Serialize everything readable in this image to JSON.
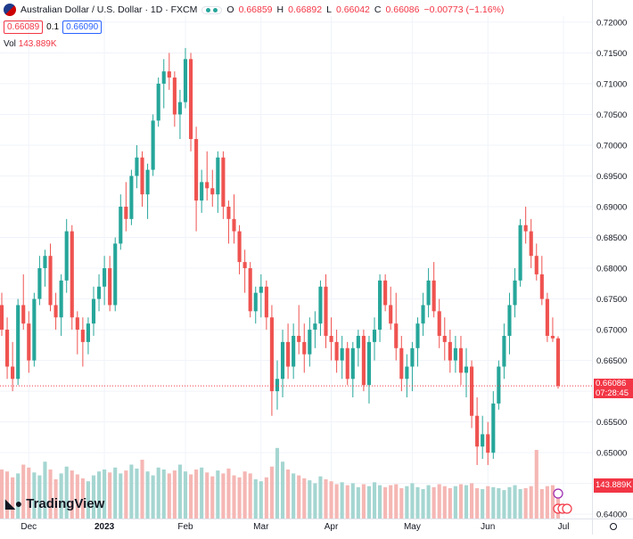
{
  "header": {
    "symbol_title": "Australian Dollar / U.S. Dollar · 1D · FXCM",
    "ohlc": {
      "o_label": "O",
      "o_value": "0.66859",
      "h_label": "H",
      "h_value": "0.66892",
      "l_label": "L",
      "l_value": "0.66042",
      "c_label": "C",
      "c_value": "0.66086",
      "change": "−0.00773 (−1.16%)"
    },
    "bid": "0.66089",
    "spread": "0.1",
    "ask": "0.66090",
    "volume_label": "Vol",
    "volume_value": "143.889K"
  },
  "brand": {
    "name": "TradingView",
    "icon": "tradingview-logo-icon"
  },
  "price_badge": {
    "price": "0.66086",
    "countdown": "07:28:45",
    "color": "#f23645"
  },
  "volume_badge": {
    "value": "143.889K",
    "color": "#f23645"
  },
  "colors": {
    "up": "#26a69a",
    "down": "#ef5350",
    "up_vol": "#a5d6d1",
    "down_vol": "#f5b7b4"
  },
  "chart_data": {
    "type": "candlestick",
    "title": "Australian Dollar / U.S. Dollar · 1D · FXCM",
    "y_axis": {
      "ticks": [
        "0.72000",
        "0.71500",
        "0.71000",
        "0.70500",
        "0.70000",
        "0.69500",
        "0.69000",
        "0.68500",
        "0.68000",
        "0.67500",
        "0.67000",
        "0.66500",
        "0.66000",
        "0.65500",
        "0.65000",
        "0.64500",
        "0.64000"
      ],
      "range": [
        0.6393,
        0.721
      ]
    },
    "x_axis": {
      "ticks": [
        "Dec",
        "2023",
        "Feb",
        "Mar",
        "Apr",
        "May",
        "Jun",
        "Jul"
      ],
      "tick_bar_index": [
        5,
        19,
        34,
        48,
        61,
        76,
        90,
        104
      ]
    },
    "last_close": 0.66086,
    "candles": [
      {
        "o": 0.674,
        "h": 0.676,
        "l": 0.669,
        "c": 0.67
      },
      {
        "o": 0.67,
        "h": 0.672,
        "l": 0.662,
        "c": 0.664
      },
      {
        "o": 0.664,
        "h": 0.668,
        "l": 0.66,
        "c": 0.662
      },
      {
        "o": 0.662,
        "h": 0.675,
        "l": 0.661,
        "c": 0.674
      },
      {
        "o": 0.674,
        "h": 0.679,
        "l": 0.67,
        "c": 0.671
      },
      {
        "o": 0.671,
        "h": 0.673,
        "l": 0.663,
        "c": 0.665
      },
      {
        "o": 0.665,
        "h": 0.676,
        "l": 0.664,
        "c": 0.675
      },
      {
        "o": 0.675,
        "h": 0.682,
        "l": 0.674,
        "c": 0.68
      },
      {
        "o": 0.68,
        "h": 0.683,
        "l": 0.677,
        "c": 0.682
      },
      {
        "o": 0.682,
        "h": 0.684,
        "l": 0.673,
        "c": 0.674
      },
      {
        "o": 0.674,
        "h": 0.676,
        "l": 0.67,
        "c": 0.672
      },
      {
        "o": 0.672,
        "h": 0.679,
        "l": 0.669,
        "c": 0.678
      },
      {
        "o": 0.678,
        "h": 0.688,
        "l": 0.676,
        "c": 0.686
      },
      {
        "o": 0.686,
        "h": 0.687,
        "l": 0.67,
        "c": 0.672
      },
      {
        "o": 0.672,
        "h": 0.673,
        "l": 0.666,
        "c": 0.67
      },
      {
        "o": 0.67,
        "h": 0.672,
        "l": 0.664,
        "c": 0.668
      },
      {
        "o": 0.668,
        "h": 0.672,
        "l": 0.666,
        "c": 0.671
      },
      {
        "o": 0.671,
        "h": 0.677,
        "l": 0.669,
        "c": 0.675
      },
      {
        "o": 0.675,
        "h": 0.679,
        "l": 0.673,
        "c": 0.677
      },
      {
        "o": 0.677,
        "h": 0.682,
        "l": 0.674,
        "c": 0.68
      },
      {
        "o": 0.68,
        "h": 0.682,
        "l": 0.673,
        "c": 0.674
      },
      {
        "o": 0.674,
        "h": 0.685,
        "l": 0.673,
        "c": 0.684
      },
      {
        "o": 0.684,
        "h": 0.692,
        "l": 0.683,
        "c": 0.69
      },
      {
        "o": 0.69,
        "h": 0.694,
        "l": 0.686,
        "c": 0.688
      },
      {
        "o": 0.688,
        "h": 0.696,
        "l": 0.687,
        "c": 0.695
      },
      {
        "o": 0.695,
        "h": 0.7,
        "l": 0.693,
        "c": 0.698
      },
      {
        "o": 0.698,
        "h": 0.699,
        "l": 0.69,
        "c": 0.692
      },
      {
        "o": 0.692,
        "h": 0.697,
        "l": 0.688,
        "c": 0.696
      },
      {
        "o": 0.696,
        "h": 0.705,
        "l": 0.695,
        "c": 0.704
      },
      {
        "o": 0.704,
        "h": 0.711,
        "l": 0.703,
        "c": 0.71
      },
      {
        "o": 0.71,
        "h": 0.714,
        "l": 0.706,
        "c": 0.712
      },
      {
        "o": 0.712,
        "h": 0.715,
        "l": 0.709,
        "c": 0.711
      },
      {
        "o": 0.711,
        "h": 0.712,
        "l": 0.703,
        "c": 0.705
      },
      {
        "o": 0.705,
        "h": 0.709,
        "l": 0.701,
        "c": 0.707
      },
      {
        "o": 0.707,
        "h": 0.7158,
        "l": 0.706,
        "c": 0.714
      },
      {
        "o": 0.714,
        "h": 0.715,
        "l": 0.699,
        "c": 0.701
      },
      {
        "o": 0.701,
        "h": 0.703,
        "l": 0.686,
        "c": 0.691
      },
      {
        "o": 0.691,
        "h": 0.696,
        "l": 0.689,
        "c": 0.694
      },
      {
        "o": 0.694,
        "h": 0.699,
        "l": 0.691,
        "c": 0.693
      },
      {
        "o": 0.693,
        "h": 0.696,
        "l": 0.69,
        "c": 0.692
      },
      {
        "o": 0.692,
        "h": 0.699,
        "l": 0.689,
        "c": 0.698
      },
      {
        "o": 0.698,
        "h": 0.699,
        "l": 0.688,
        "c": 0.69
      },
      {
        "o": 0.69,
        "h": 0.691,
        "l": 0.684,
        "c": 0.688
      },
      {
        "o": 0.688,
        "h": 0.692,
        "l": 0.684,
        "c": 0.686
      },
      {
        "o": 0.686,
        "h": 0.687,
        "l": 0.679,
        "c": 0.681
      },
      {
        "o": 0.681,
        "h": 0.683,
        "l": 0.676,
        "c": 0.68
      },
      {
        "o": 0.68,
        "h": 0.681,
        "l": 0.672,
        "c": 0.673
      },
      {
        "o": 0.673,
        "h": 0.677,
        "l": 0.671,
        "c": 0.676
      },
      {
        "o": 0.676,
        "h": 0.679,
        "l": 0.672,
        "c": 0.677
      },
      {
        "o": 0.677,
        "h": 0.678,
        "l": 0.67,
        "c": 0.672
      },
      {
        "o": 0.672,
        "h": 0.674,
        "l": 0.656,
        "c": 0.66
      },
      {
        "o": 0.66,
        "h": 0.665,
        "l": 0.657,
        "c": 0.662
      },
      {
        "o": 0.662,
        "h": 0.67,
        "l": 0.659,
        "c": 0.668
      },
      {
        "o": 0.668,
        "h": 0.671,
        "l": 0.662,
        "c": 0.664
      },
      {
        "o": 0.664,
        "h": 0.671,
        "l": 0.662,
        "c": 0.669
      },
      {
        "o": 0.669,
        "h": 0.674,
        "l": 0.666,
        "c": 0.668
      },
      {
        "o": 0.668,
        "h": 0.671,
        "l": 0.663,
        "c": 0.666
      },
      {
        "o": 0.666,
        "h": 0.672,
        "l": 0.664,
        "c": 0.67
      },
      {
        "o": 0.67,
        "h": 0.673,
        "l": 0.667,
        "c": 0.671
      },
      {
        "o": 0.671,
        "h": 0.678,
        "l": 0.669,
        "c": 0.677
      },
      {
        "o": 0.677,
        "h": 0.679,
        "l": 0.667,
        "c": 0.669
      },
      {
        "o": 0.669,
        "h": 0.672,
        "l": 0.665,
        "c": 0.668
      },
      {
        "o": 0.668,
        "h": 0.67,
        "l": 0.663,
        "c": 0.665
      },
      {
        "o": 0.665,
        "h": 0.669,
        "l": 0.662,
        "c": 0.667
      },
      {
        "o": 0.667,
        "h": 0.668,
        "l": 0.661,
        "c": 0.662
      },
      {
        "o": 0.662,
        "h": 0.668,
        "l": 0.659,
        "c": 0.667
      },
      {
        "o": 0.667,
        "h": 0.67,
        "l": 0.664,
        "c": 0.669
      },
      {
        "o": 0.669,
        "h": 0.67,
        "l": 0.66,
        "c": 0.661
      },
      {
        "o": 0.661,
        "h": 0.669,
        "l": 0.658,
        "c": 0.668
      },
      {
        "o": 0.668,
        "h": 0.672,
        "l": 0.665,
        "c": 0.67
      },
      {
        "o": 0.67,
        "h": 0.679,
        "l": 0.668,
        "c": 0.678
      },
      {
        "o": 0.678,
        "h": 0.679,
        "l": 0.673,
        "c": 0.674
      },
      {
        "o": 0.674,
        "h": 0.677,
        "l": 0.67,
        "c": 0.671
      },
      {
        "o": 0.671,
        "h": 0.676,
        "l": 0.665,
        "c": 0.667
      },
      {
        "o": 0.667,
        "h": 0.669,
        "l": 0.66,
        "c": 0.662
      },
      {
        "o": 0.662,
        "h": 0.666,
        "l": 0.659,
        "c": 0.664
      },
      {
        "o": 0.664,
        "h": 0.668,
        "l": 0.66,
        "c": 0.667
      },
      {
        "o": 0.667,
        "h": 0.672,
        "l": 0.664,
        "c": 0.671
      },
      {
        "o": 0.671,
        "h": 0.676,
        "l": 0.669,
        "c": 0.674
      },
      {
        "o": 0.674,
        "h": 0.68,
        "l": 0.672,
        "c": 0.678
      },
      {
        "o": 0.678,
        "h": 0.681,
        "l": 0.672,
        "c": 0.673
      },
      {
        "o": 0.673,
        "h": 0.675,
        "l": 0.667,
        "c": 0.669
      },
      {
        "o": 0.669,
        "h": 0.672,
        "l": 0.665,
        "c": 0.668
      },
      {
        "o": 0.668,
        "h": 0.67,
        "l": 0.663,
        "c": 0.665
      },
      {
        "o": 0.665,
        "h": 0.669,
        "l": 0.663,
        "c": 0.667
      },
      {
        "o": 0.667,
        "h": 0.669,
        "l": 0.661,
        "c": 0.663
      },
      {
        "o": 0.663,
        "h": 0.667,
        "l": 0.659,
        "c": 0.664
      },
      {
        "o": 0.664,
        "h": 0.665,
        "l": 0.654,
        "c": 0.656
      },
      {
        "o": 0.656,
        "h": 0.659,
        "l": 0.648,
        "c": 0.651
      },
      {
        "o": 0.651,
        "h": 0.656,
        "l": 0.649,
        "c": 0.653
      },
      {
        "o": 0.653,
        "h": 0.655,
        "l": 0.648,
        "c": 0.65
      },
      {
        "o": 0.65,
        "h": 0.66,
        "l": 0.649,
        "c": 0.658
      },
      {
        "o": 0.658,
        "h": 0.665,
        "l": 0.657,
        "c": 0.664
      },
      {
        "o": 0.664,
        "h": 0.671,
        "l": 0.662,
        "c": 0.669
      },
      {
        "o": 0.669,
        "h": 0.676,
        "l": 0.666,
        "c": 0.674
      },
      {
        "o": 0.674,
        "h": 0.68,
        "l": 0.672,
        "c": 0.678
      },
      {
        "o": 0.678,
        "h": 0.688,
        "l": 0.677,
        "c": 0.687
      },
      {
        "o": 0.687,
        "h": 0.69,
        "l": 0.684,
        "c": 0.686
      },
      {
        "o": 0.686,
        "h": 0.688,
        "l": 0.68,
        "c": 0.682
      },
      {
        "o": 0.682,
        "h": 0.684,
        "l": 0.678,
        "c": 0.679
      },
      {
        "o": 0.679,
        "h": 0.682,
        "l": 0.674,
        "c": 0.675
      },
      {
        "o": 0.675,
        "h": 0.676,
        "l": 0.668,
        "c": 0.669
      },
      {
        "o": 0.669,
        "h": 0.672,
        "l": 0.668,
        "c": 0.6686
      },
      {
        "o": 0.66859,
        "h": 0.66892,
        "l": 0.66042,
        "c": 0.66086
      }
    ],
    "volume": [
      0.5,
      0.48,
      0.42,
      0.46,
      0.55,
      0.52,
      0.47,
      0.44,
      0.58,
      0.5,
      0.4,
      0.46,
      0.53,
      0.49,
      0.45,
      0.41,
      0.38,
      0.44,
      0.48,
      0.5,
      0.47,
      0.52,
      0.46,
      0.49,
      0.55,
      0.51,
      0.6,
      0.48,
      0.44,
      0.52,
      0.5,
      0.46,
      0.49,
      0.55,
      0.48,
      0.45,
      0.5,
      0.52,
      0.47,
      0.43,
      0.49,
      0.46,
      0.51,
      0.44,
      0.42,
      0.48,
      0.46,
      0.4,
      0.38,
      0.42,
      0.53,
      0.72,
      0.58,
      0.5,
      0.46,
      0.44,
      0.41,
      0.39,
      0.36,
      0.43,
      0.4,
      0.38,
      0.35,
      0.37,
      0.34,
      0.36,
      0.32,
      0.35,
      0.33,
      0.37,
      0.34,
      0.32,
      0.34,
      0.35,
      0.31,
      0.33,
      0.36,
      0.32,
      0.3,
      0.34,
      0.32,
      0.35,
      0.33,
      0.31,
      0.33,
      0.35,
      0.34,
      0.36,
      0.31,
      0.3,
      0.33,
      0.32,
      0.31,
      0.29,
      0.32,
      0.34,
      0.3,
      0.31,
      0.33,
      0.7,
      0.3,
      0.33,
      0.34,
      0.28
    ]
  }
}
